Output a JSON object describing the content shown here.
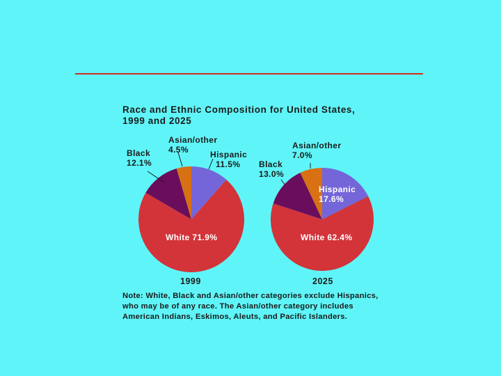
{
  "page": {
    "background": "#5ff5f8",
    "rule_color": "#d42a1e"
  },
  "chart_data": {
    "type": "pie",
    "title": "Race and Ethnic Composition for United States, 1999 and 2025",
    "note": "Note: White, Black and Asian/other categories exclude Hispanics, who may be of any race. The Asian/other category includes American Indians, Eskimos, Aleuts, and Pacific Islanders.",
    "colors": {
      "Hispanic": "#7466d8",
      "White": "#d2343a",
      "Black": "#6a0d5c",
      "Asian/other": "#d87014"
    },
    "charts": [
      {
        "year": "1999",
        "slices": [
          {
            "name": "Hispanic",
            "value": 11.5,
            "label": "Hispanic",
            "value_label": "11.5%"
          },
          {
            "name": "White",
            "value": 71.9,
            "label": "White 71.9%"
          },
          {
            "name": "Black",
            "value": 12.1,
            "label": "Black",
            "value_label": "12.1%"
          },
          {
            "name": "Asian/other",
            "value": 4.5,
            "label": "Asian/other",
            "value_label": "4.5%"
          }
        ]
      },
      {
        "year": "2025",
        "slices": [
          {
            "name": "Hispanic",
            "value": 17.6,
            "label": "Hispanic",
            "value_label": "17.6%"
          },
          {
            "name": "White",
            "value": 62.4,
            "label": "White 62.4%"
          },
          {
            "name": "Black",
            "value": 13.0,
            "label": "Black",
            "value_label": "13.0%"
          },
          {
            "name": "Asian/other",
            "value": 7.0,
            "label": "Asian/other",
            "value_label": "7.0%"
          }
        ]
      }
    ]
  }
}
